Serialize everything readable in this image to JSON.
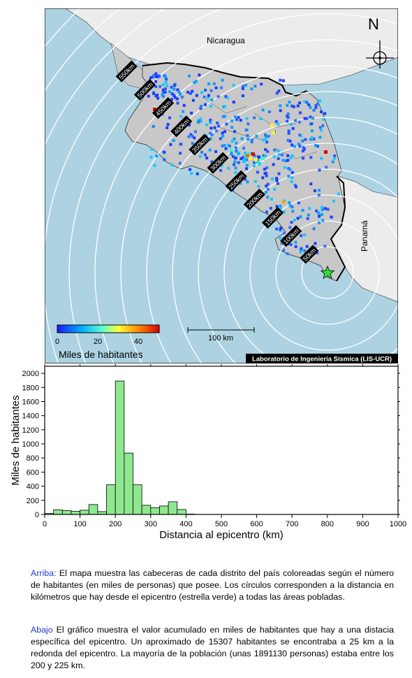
{
  "map": {
    "country_labels": {
      "nicaragua": "Nicaragua",
      "panama": "Panamá"
    },
    "north_label": "N",
    "distance_rings": [
      "50km",
      "100km",
      "150km",
      "200km",
      "250km",
      "300km",
      "350km",
      "400km",
      "450km",
      "500km",
      "550km"
    ],
    "colorbar": {
      "ticks": [
        "0",
        "20",
        "40"
      ],
      "label": "Miles de habitantes"
    },
    "scale_bar_label": "100 km",
    "credit": "Laboratorio de Ingeniería Sísmica (LIS-UCR)",
    "colors": {
      "ocean": "#add3e2",
      "land_cr": "#c8c8c8",
      "land_other": "#ececec",
      "epicenter": "#33dd33"
    }
  },
  "chart_data": {
    "type": "bar",
    "xlabel": "Distancia al epicentro (km)",
    "ylabel": "Miles de habitantes",
    "xlim": [
      0,
      1000
    ],
    "ylim": [
      0,
      2100
    ],
    "xticks": [
      0,
      100,
      200,
      300,
      400,
      500,
      600,
      700,
      800,
      900,
      1000
    ],
    "yticks": [
      0,
      200,
      400,
      600,
      800,
      1000,
      1200,
      1400,
      1600,
      1800,
      2000
    ],
    "bin_width": 25,
    "bin_starts": [
      0,
      25,
      50,
      75,
      100,
      125,
      150,
      175,
      200,
      225,
      250,
      275,
      300,
      325,
      350,
      375,
      400
    ],
    "values": [
      15,
      65,
      55,
      45,
      60,
      140,
      40,
      420,
      1891,
      870,
      420,
      130,
      95,
      120,
      180,
      70,
      5
    ],
    "bar_color": "#8fe88f"
  },
  "caption": {
    "top_tag": "Arriba:",
    "top_text": " El mapa muestra las cabeceras de cada distrito del país coloreadas según el número de habitantes (en miles de personas) que posee. Los círculos corresponden a la distancia en kilómetros que hay desde el epicentro (estrella verde) a todas las áreas pobladas.",
    "bottom_tag": "Abajo",
    "bottom_text": " El gráfico muestra el valor acumulado en miles de habitantes que hay a una distacia específica del epicentro. Un aproximado de 15307 habitantes se encontraba a 25 km a la redonda del epicentro. La mayoría de la población (unas 1891130 personas) estaba entre los 200 y 225 km."
  }
}
